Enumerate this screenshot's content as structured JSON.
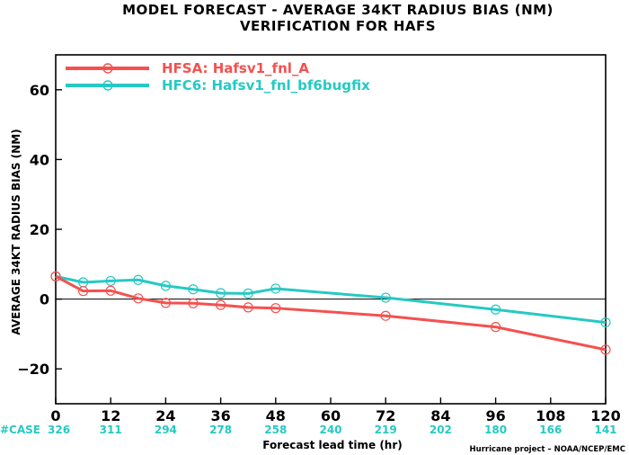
{
  "chart_data": {
    "type": "line",
    "title": "MODEL FORECAST - AVERAGE 34KT RADIUS BIAS (NM)",
    "subtitle": "VERIFICATION FOR HAFS",
    "xlabel": "Forecast lead time (hr)",
    "ylabel": "AVERAGE 34KT RADIUS BIAS (NM)",
    "xlim": [
      0,
      120
    ],
    "ylim": [
      -30,
      70
    ],
    "x_ticks": [
      "0",
      "12",
      "24",
      "36",
      "48",
      "60",
      "72",
      "84",
      "96",
      "108",
      "120"
    ],
    "y_ticks": [
      "60",
      "40",
      "20",
      "0",
      "−20"
    ],
    "grid": false,
    "legend_position": "top-left",
    "series": [
      {
        "name": "HFSA: Hafsv1_fnl_A",
        "color": "#f4514f",
        "x": [
          0,
          6,
          12,
          18,
          24,
          30,
          36,
          42,
          48,
          72,
          96,
          120
        ],
        "y": [
          6.5,
          2.3,
          2.4,
          0.2,
          -1.1,
          -1.2,
          -1.7,
          -2.4,
          -2.6,
          -4.8,
          -8.0,
          -14.5
        ]
      },
      {
        "name": "HFC6: Hafsv1_fnl_bf6bugfix",
        "color": "#26c9c3",
        "x": [
          0,
          6,
          12,
          18,
          24,
          30,
          36,
          42,
          48,
          72,
          96,
          120
        ],
        "y": [
          6.5,
          4.8,
          5.2,
          5.5,
          3.8,
          2.8,
          1.7,
          1.6,
          3.0,
          0.4,
          -3.0,
          -6.7
        ]
      }
    ],
    "case_counts": {
      "label": "#CASE",
      "color": "#26c9c3",
      "hours": [
        0,
        12,
        24,
        36,
        48,
        60,
        72,
        84,
        96,
        108,
        120
      ],
      "values": [
        "326",
        "311",
        "294",
        "278",
        "258",
        "240",
        "219",
        "202",
        "180",
        "166",
        "141"
      ]
    },
    "credit": "Hurricane project – NOAA/NCEP/EMC"
  }
}
